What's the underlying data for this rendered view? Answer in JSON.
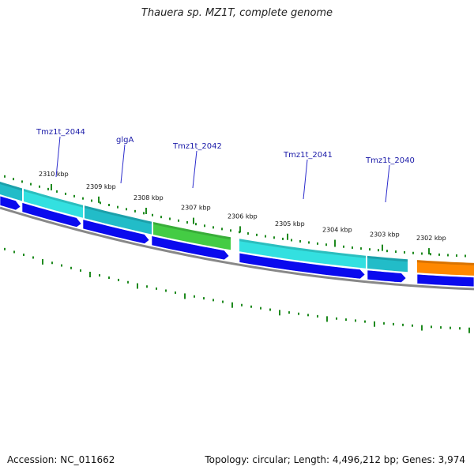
{
  "header": {
    "title": "Thauera sp. MZ1T, complete genome"
  },
  "footer": {
    "accession": "Accession: NC_011662",
    "summary": "Topology: circular; Length: 4,496,212 bp; Genes: 3,974"
  },
  "colors": {
    "forward_cds": "#0a0aee",
    "feature_cyan": "#33e0e0",
    "feature_teal": "#22bcc8",
    "feature_green": "#44cc44",
    "feature_orange": "#ff8800",
    "backbone": "#888888",
    "tick_mark": "#1f8a1f",
    "gene_label": "#1a1aa8",
    "label_line": "#2a2acc"
  },
  "kbp_ticks": [
    {
      "label": "2310 kbp"
    },
    {
      "label": "2309 kbp"
    },
    {
      "label": "2308 kbp"
    },
    {
      "label": "2307 kbp"
    },
    {
      "label": "2306 kbp"
    },
    {
      "label": "2305 kbp"
    },
    {
      "label": "2304 kbp"
    },
    {
      "label": "2303 kbp"
    },
    {
      "label": "2302 kbp"
    }
  ],
  "gene_labels": [
    {
      "name": "Tmz1t_2044"
    },
    {
      "name": "glgA"
    },
    {
      "name": "Tmz1t_2042"
    },
    {
      "name": "Tmz1t_2041"
    },
    {
      "name": "Tmz1t_2040"
    }
  ]
}
